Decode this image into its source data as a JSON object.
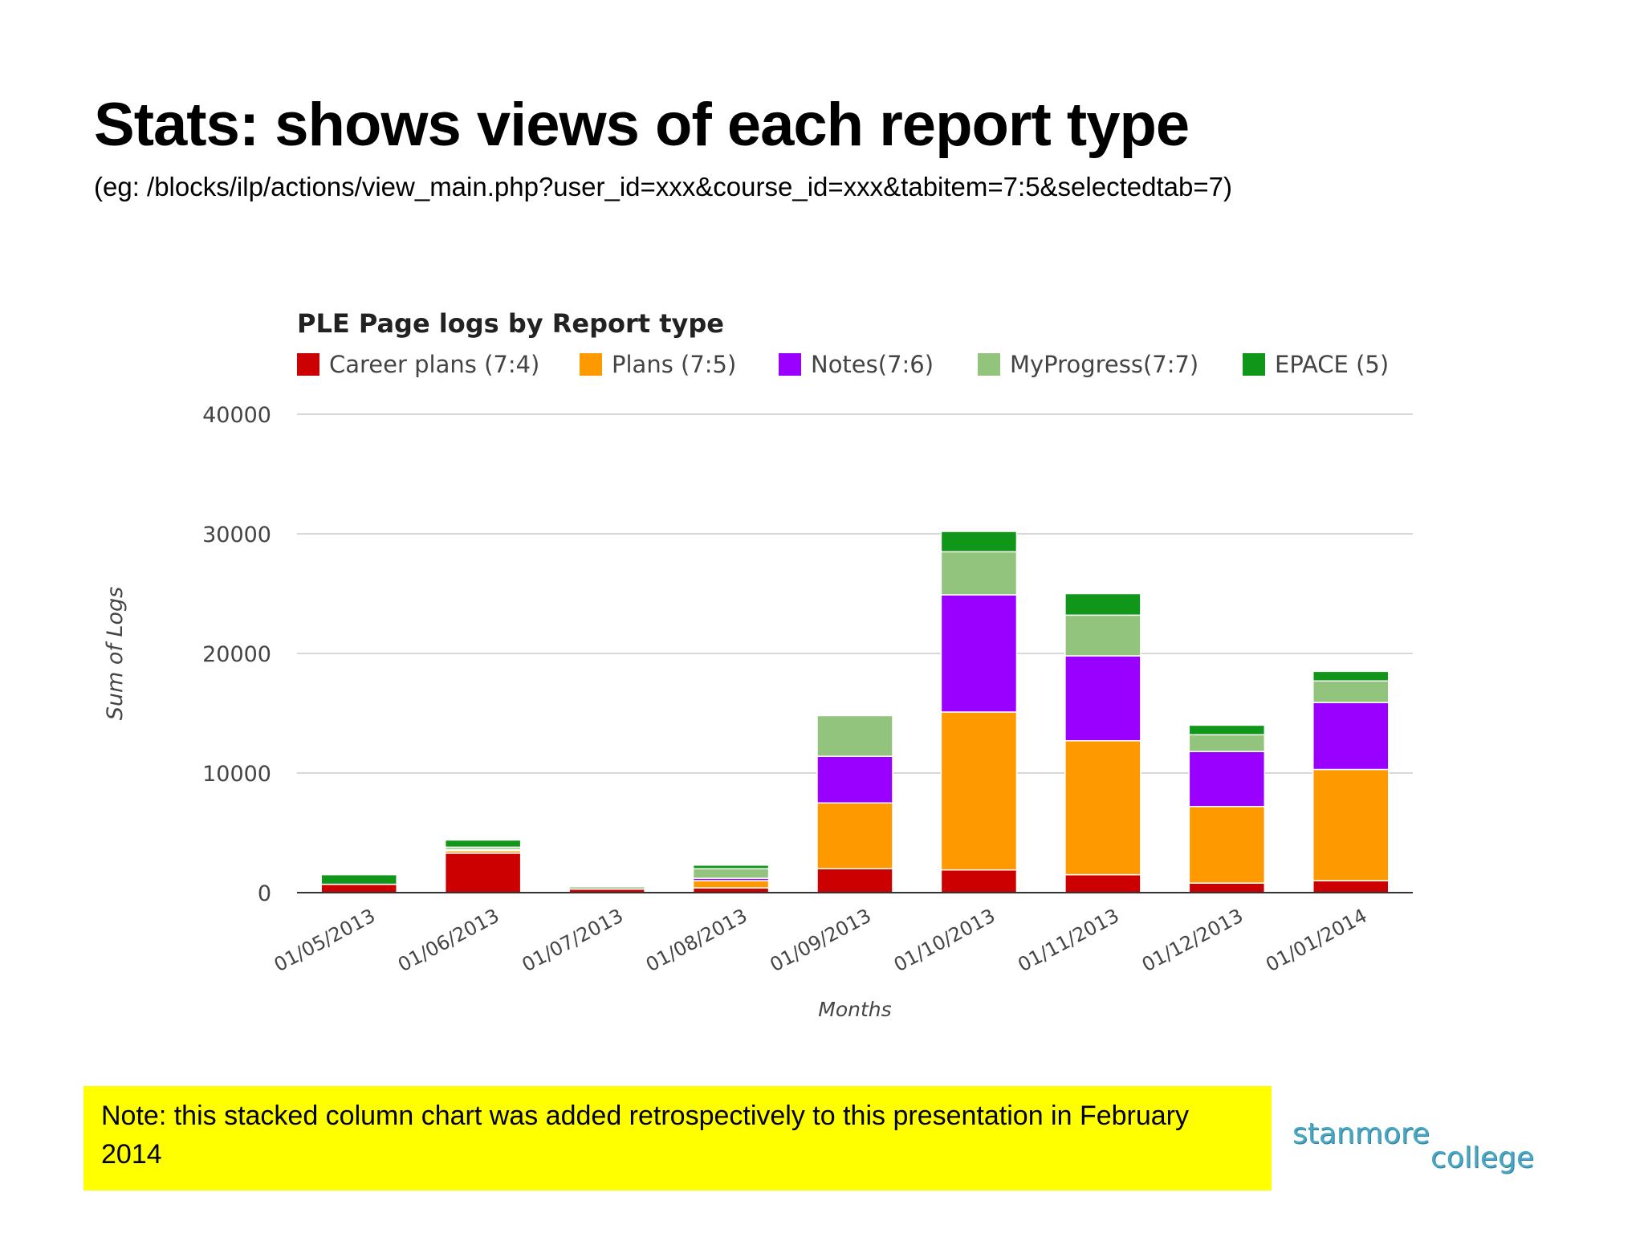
{
  "slide": {
    "title": "Stats: shows views of each report type",
    "subtitle": "(eg: /blocks/ilp/actions/view_main.php?user_id=xxx&course_id=xxx&tabitem=7:5&selectedtab=7)",
    "note": "Note: this stacked column chart was added retrospectively to this presentation in February 2014",
    "logo_line1": "stanmore",
    "logo_line2": "college"
  },
  "chart_data": {
    "type": "bar",
    "stacked": true,
    "title": "PLE Page logs by Report type",
    "xlabel": "Months",
    "ylabel": "Sum of Logs",
    "ylim": [
      0,
      40000
    ],
    "yticks": [
      0,
      10000,
      20000,
      30000,
      40000
    ],
    "grid": true,
    "legend_position": "top",
    "categories": [
      "01/05/2013",
      "01/06/2013",
      "01/07/2013",
      "01/08/2013",
      "01/09/2013",
      "01/10/2013",
      "01/11/2013",
      "01/12/2013",
      "01/01/2014"
    ],
    "series": [
      {
        "name": "Career plans (7:4)",
        "color": "#cc0000",
        "values": [
          700,
          3300,
          300,
          400,
          2000,
          1900,
          1500,
          800,
          1000
        ]
      },
      {
        "name": "Plans (7:5)",
        "color": "#ff9900",
        "values": [
          0,
          200,
          0,
          600,
          5500,
          13200,
          11200,
          6400,
          9300
        ]
      },
      {
        "name": "Notes(7:6)",
        "color": "#9900ff",
        "values": [
          0,
          100,
          0,
          200,
          3900,
          9800,
          7100,
          4600,
          5600
        ]
      },
      {
        "name": "MyProgress(7:7)",
        "color": "#93c47d",
        "values": [
          0,
          200,
          200,
          800,
          3400,
          3600,
          3400,
          1400,
          1800
        ]
      },
      {
        "name": "EPACE (5)",
        "color": "#109618",
        "values": [
          800,
          600,
          100,
          300,
          0,
          1700,
          1800,
          800,
          800
        ]
      }
    ]
  }
}
